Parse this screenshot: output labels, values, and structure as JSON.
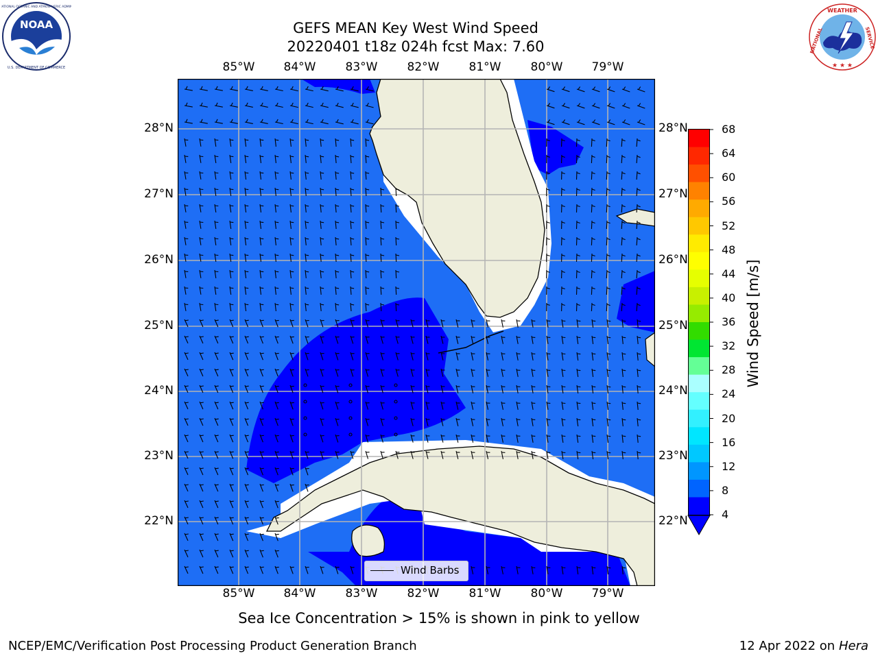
{
  "header": {
    "title_line1": "GEFS MEAN Key West Wind Speed",
    "title_line2": "20220401 t18z 024h fcst   Max: 7.60"
  },
  "logos": {
    "noaa": {
      "name": "noaa-logo",
      "text": "NOAA",
      "ring_text": "NATIONAL OCEANIC AND ATMOSPHERIC ADMINISTRATION · U.S. DEPARTMENT OF COMMERCE"
    },
    "nws": {
      "name": "nws-logo",
      "ring_text": "NATIONAL WEATHER SERVICE"
    }
  },
  "map": {
    "longitude_ticks": [
      "85°W",
      "84°W",
      "83°W",
      "82°W",
      "81°W",
      "80°W",
      "79°W"
    ],
    "latitude_ticks": [
      "28°N",
      "27°N",
      "26°N",
      "25°N",
      "24°N",
      "23°N",
      "22°N"
    ],
    "legend_label": "Wind Barbs",
    "colors": {
      "ocean_base": "#1e6ef5",
      "ocean_low": "#0000ff",
      "land": "#eeeedc",
      "gridline": "#b4b4b4",
      "coast_white": "#ffffff"
    }
  },
  "colorbar": {
    "label": "Wind Speed [m/s]",
    "ticks": [
      "68",
      "64",
      "60",
      "56",
      "52",
      "48",
      "44",
      "40",
      "36",
      "32",
      "28",
      "24",
      "20",
      "16",
      "12",
      "8",
      "4"
    ],
    "colors": [
      "#ff0000",
      "#ff2800",
      "#ff5000",
      "#ff8200",
      "#ffaa00",
      "#ffc800",
      "#ffeb00",
      "#ffff00",
      "#e6ff00",
      "#c8f000",
      "#96eb00",
      "#32dc00",
      "#00e632",
      "#64ff96",
      "#aaffff",
      "#64ffff",
      "#32f0ff",
      "#00e6ff",
      "#00c8ff",
      "#0096ff",
      "#0064ff",
      "#0000ff"
    ]
  },
  "notes": {
    "sea_ice": "Sea Ice Concentration > 15% is shown in pink to yellow",
    "footer_left": "NCEP/EMC/Verification Post Processing Product Generation Branch",
    "footer_date": "12 Apr 2022 on ",
    "footer_host": "Hera"
  }
}
